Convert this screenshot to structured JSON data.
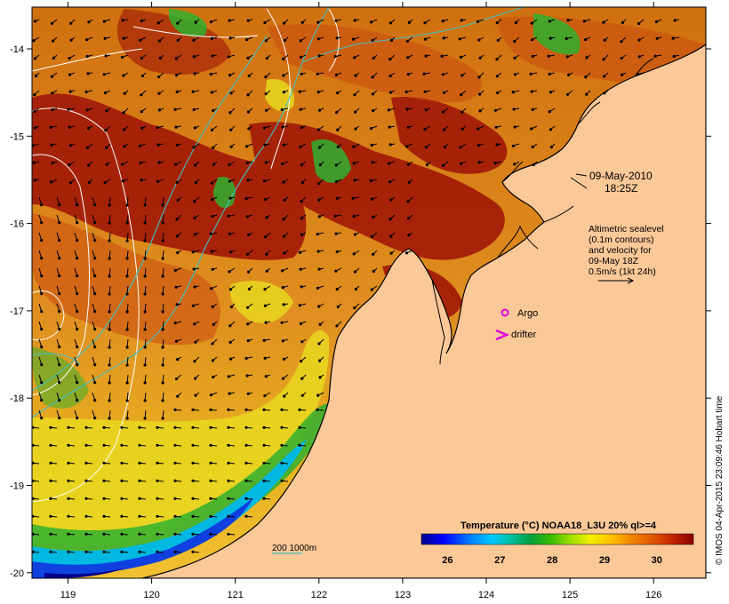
{
  "map": {
    "timestamp": {
      "date": "09-May-2010",
      "time": "18:25Z"
    },
    "altimetry_note": [
      "Altimetric sealevel",
      "(0.1m contours)",
      "and velocity for",
      "09-May 18Z",
      "0.5m/s (1kt 24h)"
    ],
    "markers": {
      "argo": "Argo",
      "drifter": "drifter"
    },
    "isobath_legend": "200 1000m",
    "credit": "© IMOS 04-Apr-2015 23:09:46 Hobart time",
    "colorbar": {
      "title": "Temperature (°C) NOAA18_L3U 20% ql>=4",
      "ticks": [
        "26",
        "27",
        "28",
        "29",
        "30"
      ],
      "range": [
        25.5,
        30.7
      ],
      "colors": [
        "#00008b",
        "#0000ff",
        "#0080ff",
        "#00c8ff",
        "#00c0a0",
        "#00a040",
        "#40c000",
        "#a0e000",
        "#f0f000",
        "#ffc000",
        "#f08000",
        "#e05000",
        "#c02000",
        "#8b0000"
      ]
    },
    "axes": {
      "lon_ticks": [
        "119",
        "120",
        "121",
        "122",
        "123",
        "124",
        "125",
        "126"
      ],
      "lat_ticks": [
        "-14",
        "-15",
        "-16",
        "-17",
        "-18",
        "-19",
        "-20"
      ]
    },
    "colors": {
      "land": "#fbc898",
      "coast": "#000000",
      "isobath": "#40c0c0",
      "sealevel_contour": "#ffffff",
      "marker": "#e000e0",
      "velocity": "#000000"
    },
    "velocity_scale": {
      "speed": "0.5m/s (1kt 24h)"
    }
  }
}
